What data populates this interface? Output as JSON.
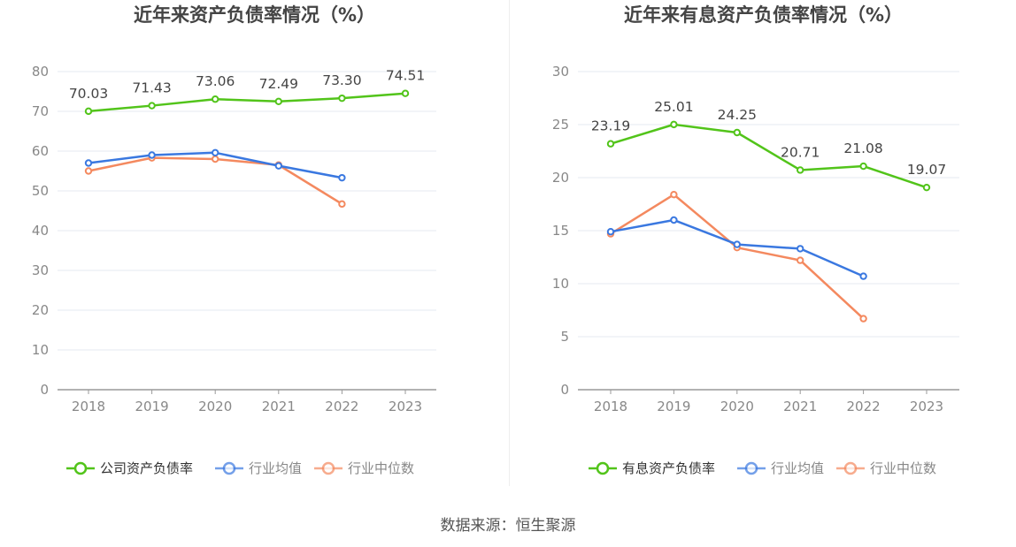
{
  "source_text": "数据来源：恒生聚源",
  "chart_data": [
    {
      "type": "line",
      "title": "近年来资产负债率情况（%）",
      "categories": [
        "2018",
        "2019",
        "2020",
        "2021",
        "2022",
        "2023"
      ],
      "ylim": [
        0,
        80
      ],
      "yticks": [
        0,
        10,
        20,
        30,
        40,
        50,
        60,
        70,
        80
      ],
      "grid": true,
      "legend_position": "bottom-center",
      "series": [
        {
          "name": "公司资产负债率",
          "color": "#52c41a",
          "values": [
            70.03,
            71.43,
            73.06,
            72.49,
            73.3,
            74.51
          ],
          "labels": [
            "70.03",
            "71.43",
            "73.06",
            "72.49",
            "73.30",
            "74.51"
          ]
        },
        {
          "name": "行业均值",
          "color": "#3a78e0",
          "values": [
            57.0,
            59.0,
            59.6,
            56.3,
            53.3,
            null
          ]
        },
        {
          "name": "行业中位数",
          "color": "#f4895f",
          "values": [
            55.0,
            58.3,
            58.0,
            56.5,
            46.7,
            null
          ]
        }
      ]
    },
    {
      "type": "line",
      "title": "近年来有息资产负债率情况（%）",
      "categories": [
        "2018",
        "2019",
        "2020",
        "2021",
        "2022",
        "2023"
      ],
      "ylim": [
        0,
        30
      ],
      "yticks": [
        0,
        5,
        10,
        15,
        20,
        25,
        30
      ],
      "grid": true,
      "legend_position": "bottom-center",
      "series": [
        {
          "name": "有息资产负债率",
          "color": "#52c41a",
          "values": [
            23.19,
            25.01,
            24.25,
            20.71,
            21.08,
            19.07
          ],
          "labels": [
            "23.19",
            "25.01",
            "24.25",
            "20.71",
            "21.08",
            "19.07"
          ]
        },
        {
          "name": "行业均值",
          "color": "#3a78e0",
          "values": [
            14.9,
            16.0,
            13.7,
            13.3,
            10.7,
            null
          ]
        },
        {
          "name": "行业中位数",
          "color": "#f4895f",
          "values": [
            14.7,
            18.4,
            13.4,
            12.2,
            6.7,
            null
          ]
        }
      ]
    }
  ]
}
